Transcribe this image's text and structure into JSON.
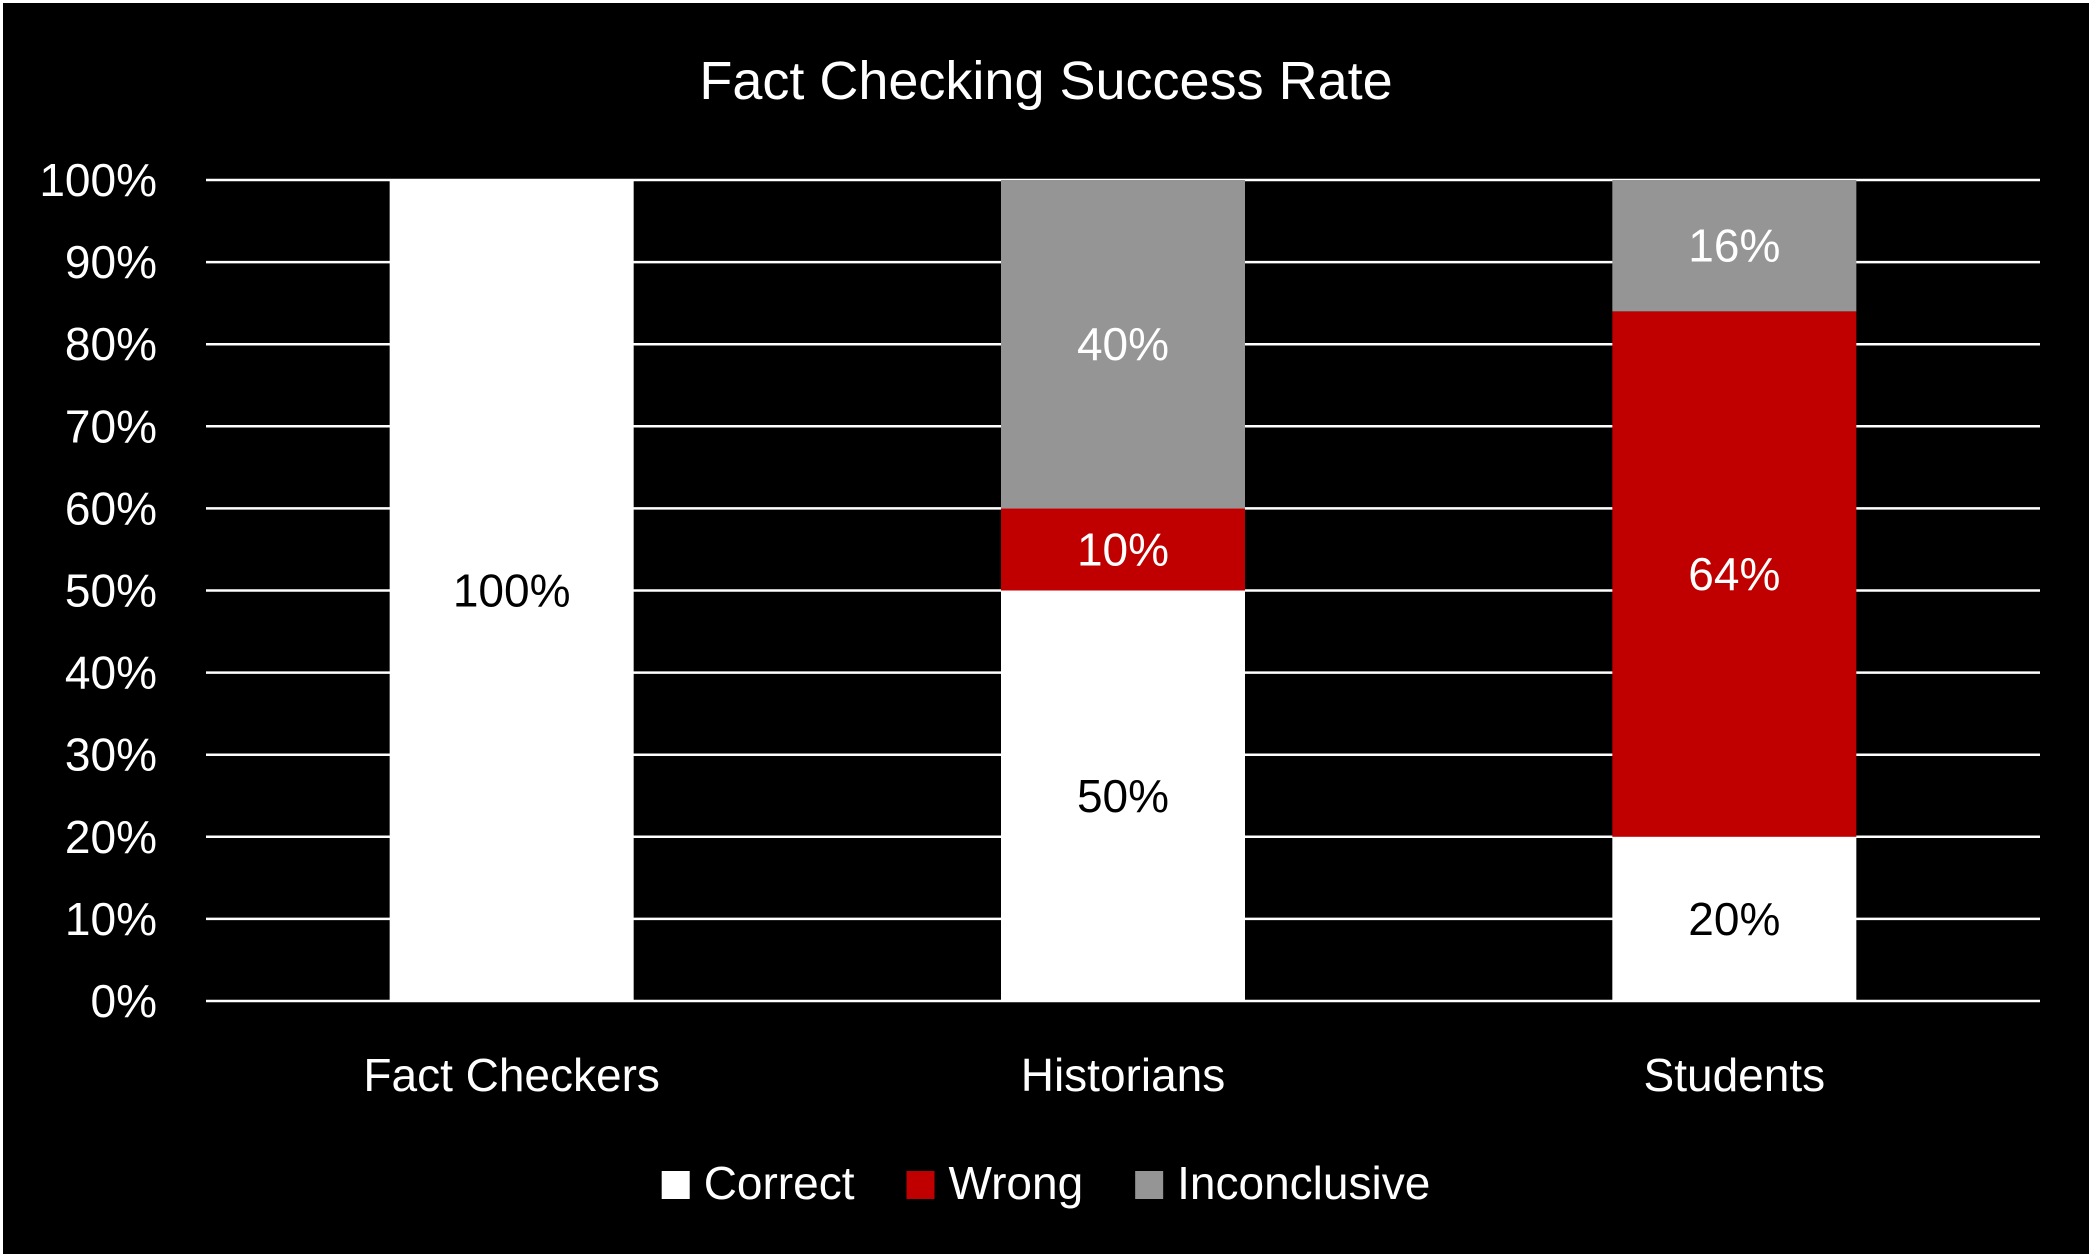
{
  "chart_data": {
    "type": "bar",
    "stacked": true,
    "title": "Fact Checking Success Rate",
    "categories": [
      "Fact Checkers",
      "Historians",
      "Students"
    ],
    "series": [
      {
        "name": "Correct",
        "color": "#ffffff",
        "label_color": "#000000",
        "values": [
          100,
          50,
          20
        ]
      },
      {
        "name": "Wrong",
        "color": "#c00000",
        "label_color": "#ffffff",
        "values": [
          0,
          10,
          64
        ]
      },
      {
        "name": "Inconclusive",
        "color": "#959595",
        "label_color": "#ffffff",
        "values": [
          0,
          40,
          16
        ]
      }
    ],
    "value_suffix": "%",
    "ylim": [
      0,
      100
    ],
    "yticks": [
      "0%",
      "10%",
      "20%",
      "30%",
      "40%",
      "50%",
      "60%",
      "70%",
      "80%",
      "90%",
      "100%"
    ],
    "grid": true,
    "legend_position": "bottom",
    "background": "#000000",
    "text_color": "#ffffff",
    "gridline_color": "#ffffff"
  }
}
